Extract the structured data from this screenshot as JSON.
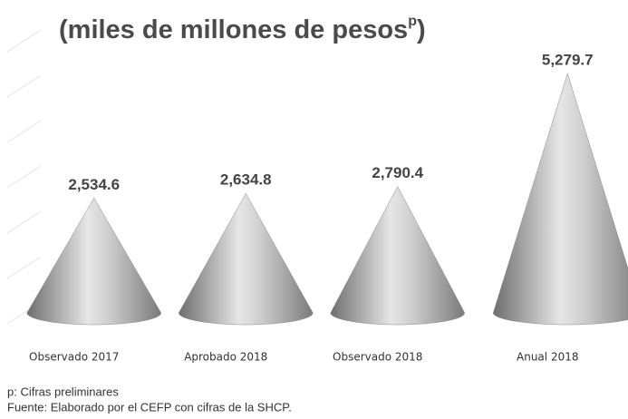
{
  "chart_data": {
    "type": "cone",
    "title": "(miles de millones de pesos",
    "title_superscript": "p",
    "title_end": ")",
    "categories": [
      "Observado 2017",
      "Aprobado 2018",
      "Observado 2018",
      "Anual 2018"
    ],
    "values": [
      2534.6,
      2634.8,
      2790.4,
      5279.7
    ],
    "value_labels": [
      "2,534.6",
      "2,634.8",
      "2,790.4",
      "5,279.7"
    ],
    "color": "#a0a0a0",
    "ylim": [
      0,
      6000
    ],
    "yticks": [
      0,
      1000,
      2000,
      3000,
      4000,
      5000,
      6000
    ],
    "grid": true,
    "notes": [
      "p: Cifras preliminares",
      "Fuente: Elaborado por el CEFP con cifras de la SHCP."
    ]
  }
}
